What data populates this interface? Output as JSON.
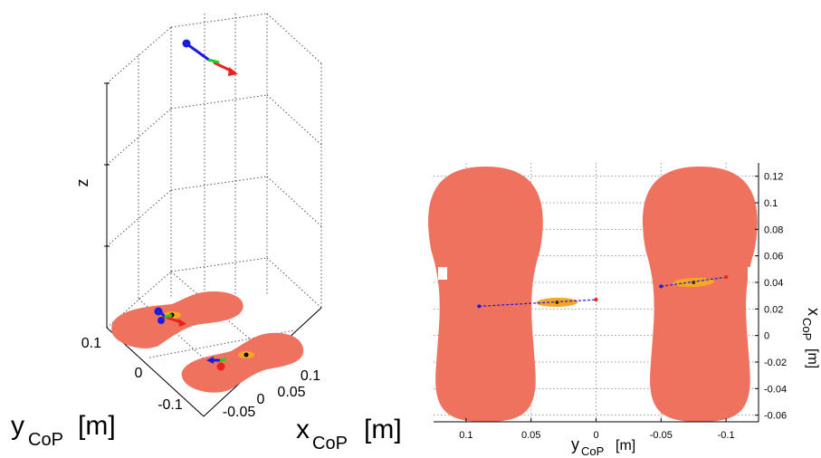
{
  "chart_data": [
    {
      "type": "scatter",
      "view": "3d",
      "zlabel": "z",
      "xlabel_main": "x",
      "xlabel_sub": "CoP",
      "xlabel_unit": "[m]",
      "ylabel_main": "y",
      "ylabel_sub": "CoP",
      "ylabel_unit": "[m]",
      "x_ticks": [
        "0.1",
        "0.05",
        "0",
        "-0.05"
      ],
      "y_ticks": [
        "0.1",
        "0",
        "-0.1"
      ],
      "grid": true,
      "colors": {
        "foot": "#EE725E",
        "arrow_x": "#E8221C",
        "arrow_y": "#1C1CE0",
        "arrow_z": "#22CC22",
        "ellipse": "#F5A623"
      }
    },
    {
      "type": "scatter",
      "view": "top",
      "xlabel_main": "y",
      "xlabel_sub": "CoP",
      "xlabel_unit": "[m]",
      "ylabel_main": "x",
      "ylabel_sub": "CoP",
      "ylabel_unit": "[m]",
      "xlim": [
        0.125,
        -0.125
      ],
      "ylim": [
        -0.065,
        0.13
      ],
      "x_ticks": [
        0.1,
        0.05,
        0,
        -0.05,
        -0.1
      ],
      "y_ticks": [
        0.12,
        0.1,
        0.08,
        0.06,
        0.04,
        0.02,
        0,
        -0.02,
        -0.04,
        -0.06
      ],
      "x_tick_labels": [
        "0.1",
        "0.05",
        "0",
        "-0.05",
        "-0.1"
      ],
      "y_tick_labels": [
        "0.12",
        "0.1",
        "0.08",
        "0.06",
        "0.04",
        "0.02",
        "0",
        "-0.02",
        "-0.04",
        "-0.06"
      ],
      "grid": true,
      "feet": [
        {
          "y_center": 0.085,
          "x_center": 0.035
        },
        {
          "y_center": -0.08,
          "x_center": 0.035
        }
      ],
      "cop_paths": [
        {
          "ellipse_center": [
            0.03,
            0.025
          ],
          "start": [
            0.09,
            0.022
          ],
          "end": [
            0.0,
            0.027
          ],
          "color_start": "#1C1CE0",
          "color_end": "#E8221C"
        },
        {
          "ellipse_center": [
            -0.075,
            0.04
          ],
          "start": [
            -0.05,
            0.037
          ],
          "end": [
            -0.1,
            0.044
          ],
          "color_start": "#1C1CE0",
          "color_end": "#E8221C"
        }
      ],
      "colors": {
        "foot": "#EE725E",
        "ellipse": "#F5A623",
        "path": "#1C1CE0",
        "grid": "#9a9a9a"
      }
    }
  ]
}
